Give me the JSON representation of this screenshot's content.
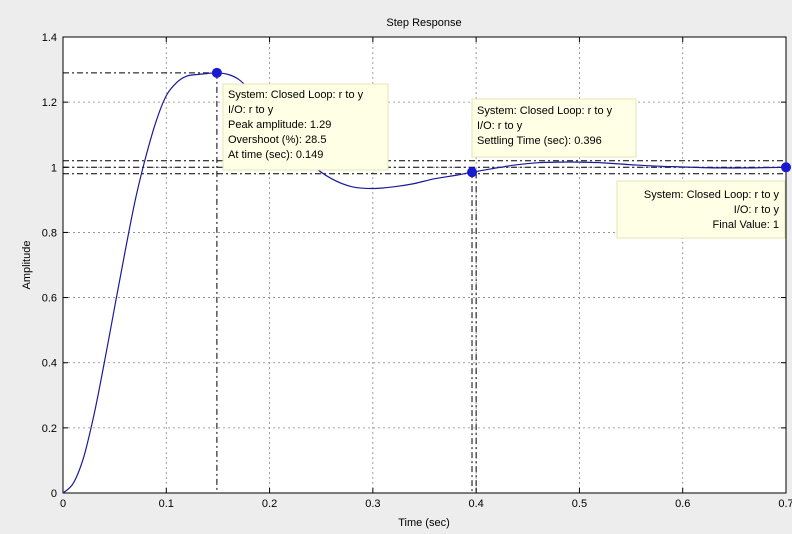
{
  "chart_data": {
    "type": "line",
    "title": "Step Response",
    "xlabel": "Time (sec)",
    "ylabel": "Amplitude",
    "xlim": [
      0,
      0.7
    ],
    "ylim": [
      0,
      1.4
    ],
    "xticks": [
      0,
      0.1,
      0.2,
      0.3,
      0.4,
      0.5,
      0.6,
      0.7
    ],
    "xtick_labels": [
      "0",
      "0.1",
      "0.2",
      "0.3",
      "0.4",
      "0.5",
      "0.6",
      "0.7"
    ],
    "yticks": [
      0,
      0.2,
      0.4,
      0.6,
      0.8,
      1,
      1.2,
      1.4
    ],
    "ytick_labels": [
      "0",
      "0.2",
      "0.4",
      "0.6",
      "0.8",
      "1",
      "1.2",
      "1.4"
    ],
    "grid": true,
    "series": [
      {
        "color": "#1a1a9a",
        "x": [
          0,
          0.01,
          0.02,
          0.03,
          0.04,
          0.05,
          0.06,
          0.07,
          0.08,
          0.09,
          0.1,
          0.11,
          0.12,
          0.13,
          0.14,
          0.149,
          0.16,
          0.17,
          0.18,
          0.19,
          0.2,
          0.22,
          0.24,
          0.26,
          0.28,
          0.3,
          0.32,
          0.34,
          0.36,
          0.38,
          0.396,
          0.42,
          0.44,
          0.46,
          0.48,
          0.5,
          0.52,
          0.54,
          0.56,
          0.58,
          0.6,
          0.62,
          0.64,
          0.66,
          0.68,
          0.7
        ],
        "y": [
          0,
          0.03,
          0.11,
          0.24,
          0.4,
          0.57,
          0.74,
          0.9,
          1.03,
          1.14,
          1.22,
          1.26,
          1.28,
          1.285,
          1.288,
          1.29,
          1.285,
          1.27,
          1.24,
          1.2,
          1.16,
          1.08,
          1.01,
          0.965,
          0.94,
          0.935,
          0.94,
          0.95,
          0.965,
          0.975,
          0.985,
          0.998,
          1.008,
          1.014,
          1.016,
          1.016,
          1.014,
          1.01,
          1.006,
          1.003,
          1.001,
          0.999,
          0.998,
          0.998,
          0.999,
          1.0
        ]
      }
    ],
    "markers": [
      {
        "x": 0.149,
        "y": 1.29
      },
      {
        "x": 0.396,
        "y": 0.985
      },
      {
        "x": 0.7,
        "y": 1.0
      }
    ],
    "reference_lines": {
      "horizontal": [
        1.29,
        1.02,
        1.0,
        0.98
      ],
      "vertical": [
        0.149,
        0.396,
        0.4
      ]
    },
    "datatips": [
      {
        "lines": [
          "System: Closed Loop: r to y",
          "I/O: r to y",
          "Peak amplitude: 1.29",
          "Overshoot (%): 28.5",
          "At time (sec): 0.149"
        ],
        "align": "left"
      },
      {
        "lines": [
          "System: Closed Loop: r to y",
          "I/O: r to y",
          "Settling Time (sec): 0.396"
        ],
        "align": "left"
      },
      {
        "lines": [
          "System: Closed Loop: r to y",
          "I/O: r to y",
          "Final Value: 1"
        ],
        "align": "right"
      }
    ]
  }
}
